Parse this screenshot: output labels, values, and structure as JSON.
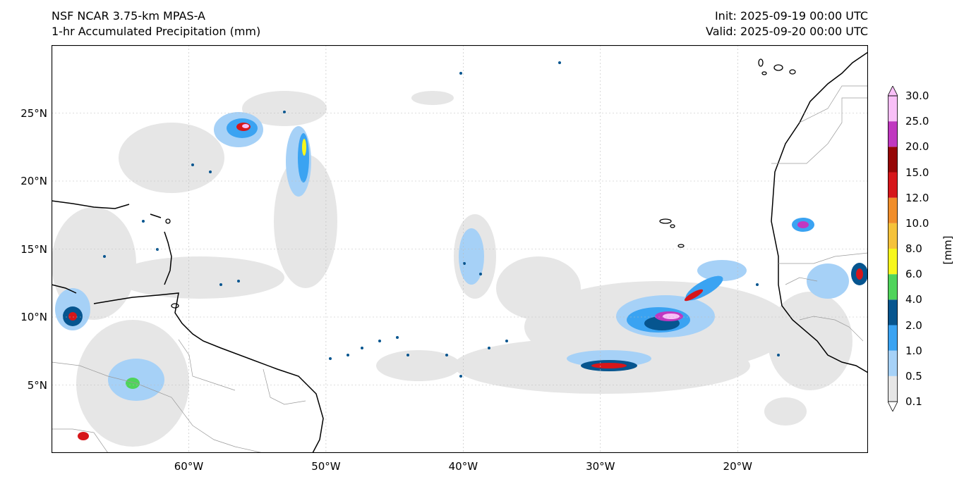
{
  "header": {
    "model": "NSF NCAR 3.75-km MPAS-A",
    "field": "1-hr Accumulated Precipitation (mm)",
    "init": "Init: 2025-09-19 00:00 UTC",
    "valid": "Valid: 2025-09-20 00:00 UTC"
  },
  "map": {
    "lon_range": [
      -70,
      -10.5
    ],
    "lat_range": [
      0,
      30
    ],
    "lat_ticks": [
      {
        "value": 25,
        "label": "25°N"
      },
      {
        "value": 20,
        "label": "20°N"
      },
      {
        "value": 15,
        "label": "15°N"
      },
      {
        "value": 10,
        "label": "10°N"
      },
      {
        "value": 5,
        "label": "5°N"
      }
    ],
    "lon_ticks": [
      {
        "value": -60,
        "label": "60°W"
      },
      {
        "value": -50,
        "label": "50°W"
      },
      {
        "value": -40,
        "label": "40°W"
      },
      {
        "value": -30,
        "label": "30°W"
      },
      {
        "value": -20,
        "label": "20°W"
      }
    ],
    "gridlines": true
  },
  "colorbar": {
    "unit": "[mm]",
    "levels": [
      "0.1",
      "0.5",
      "1.0",
      "2.0",
      "4.0",
      "6.0",
      "8.0",
      "10.0",
      "12.0",
      "15.0",
      "20.0",
      "25.0",
      "30.0"
    ],
    "colors": [
      "#e6e6e6",
      "#a6d1f7",
      "#3aa3f2",
      "#06558f",
      "#4fd45b",
      "#f7f71c",
      "#f5c23a",
      "#f08d2a",
      "#d6161a",
      "#960606",
      "#c038c0",
      "#f8bff7"
    ],
    "extend": "both"
  }
}
